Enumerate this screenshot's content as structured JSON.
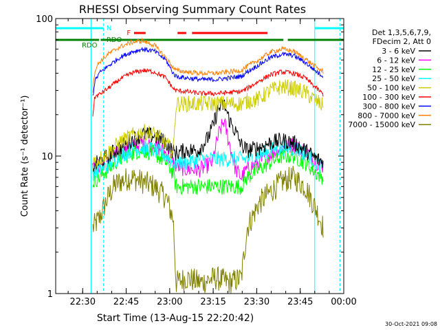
{
  "chart_data": {
    "type": "line",
    "title": "RHESSI Observing Summary Count Rates",
    "xlabel": "Start Time (13-Aug-15 22:20:42)",
    "ylabel": "Count Rate (s⁻¹ detector⁻¹)",
    "yscale": "log",
    "ylim": [
      1,
      100
    ],
    "xlim_minutes_after_22_20_42": [
      0,
      99.3
    ],
    "x_ticks": [
      "22:30",
      "22:45",
      "23:00",
      "23:15",
      "23:30",
      "23:45",
      "00:00"
    ],
    "y_ticks": [
      "1",
      "10",
      "100"
    ],
    "legend_header": [
      "Det 1,3,5,6,7,9,",
      "FDecim 2, Att 0"
    ],
    "legend_position": "top-right",
    "grid": false,
    "series": [
      {
        "name": "3 - 6 keV",
        "color": "#000000",
        "x": [
          12.8,
          15,
          18,
          22,
          26,
          30,
          34,
          38,
          40.5,
          41.5,
          45,
          49,
          52,
          54,
          56,
          58,
          60,
          62,
          64,
          66,
          70,
          74,
          78,
          82,
          86,
          90,
          92.3
        ],
        "y": [
          8.5,
          9,
          10,
          11.5,
          13,
          14.5,
          14,
          12.5,
          10.8,
          10.5,
          11,
          11,
          13,
          16,
          22,
          24,
          18,
          15,
          12,
          11,
          11.5,
          12.5,
          13,
          12.5,
          11,
          9.5,
          9
        ]
      },
      {
        "name": "6 - 12 keV",
        "color": "#ff00ff",
        "x": [
          12.8,
          15,
          18,
          22,
          26,
          30,
          34,
          38,
          40.5,
          41.5,
          45,
          50,
          54,
          56,
          58,
          60,
          62,
          64,
          66,
          70,
          74,
          78,
          82,
          86,
          90,
          92.3
        ],
        "y": [
          8,
          8.5,
          9.5,
          10.5,
          11.5,
          12.5,
          12,
          10.5,
          9,
          8.5,
          8,
          8,
          9,
          14,
          18,
          12,
          8,
          7,
          8,
          9,
          10.5,
          11.5,
          12,
          11,
          9,
          8.5
        ]
      },
      {
        "name": "12 - 25 keV",
        "color": "#00ff00",
        "x": [
          12.8,
          15,
          18,
          22,
          26,
          30,
          34,
          38,
          40.5,
          41.5,
          45,
          50,
          55,
          60,
          64,
          66,
          70,
          74,
          78,
          82,
          86,
          90,
          92.3
        ],
        "y": [
          6.5,
          7,
          8,
          9.5,
          10.5,
          11,
          10.5,
          9,
          7.5,
          6,
          6,
          6,
          6,
          6,
          6,
          7,
          8,
          9,
          10,
          10,
          9,
          7.5,
          7
        ]
      },
      {
        "name": "25 - 50 keV",
        "color": "#00ffff",
        "x": [
          12.8,
          15,
          18,
          22,
          26,
          30,
          34,
          38,
          40.5,
          41.5,
          45,
          50,
          55,
          60,
          64,
          66,
          70,
          74,
          78,
          82,
          86,
          90,
          92.3
        ],
        "y": [
          7.5,
          8,
          8.5,
          10,
          11,
          11.5,
          11,
          10,
          9,
          9,
          9,
          9.5,
          9.5,
          9.5,
          9.5,
          9.5,
          10,
          11,
          11.5,
          11.5,
          10.5,
          9,
          8
        ]
      },
      {
        "name": "50 - 100 keV",
        "color": "#cccc00",
        "x": [
          12.8,
          15,
          18,
          22,
          26,
          30,
          34,
          38,
          40.5,
          41.5,
          45,
          50,
          55,
          60,
          64,
          66,
          70,
          74,
          78,
          82,
          86,
          90,
          92.3
        ],
        "y": [
          9,
          9.5,
          10.5,
          12.5,
          14,
          15,
          14.5,
          12.5,
          10.5,
          24,
          24,
          24,
          24,
          24,
          24,
          25,
          26,
          30,
          32,
          31,
          29,
          25,
          23
        ]
      },
      {
        "name": "100 - 300 keV",
        "color": "#ff0000",
        "x": [
          12.8,
          13.5,
          15,
          18,
          22,
          26,
          30,
          34,
          38,
          40.5,
          41.5,
          45,
          50,
          55,
          60,
          64,
          66,
          70,
          74,
          78,
          82,
          86,
          90,
          92.3
        ],
        "y": [
          20,
          27,
          28,
          31,
          36,
          40,
          42,
          41,
          37,
          31,
          30,
          29.5,
          28.5,
          28.5,
          29,
          29.5,
          31,
          35,
          39,
          41,
          40,
          37,
          31,
          28
        ]
      },
      {
        "name": "300 - 800 keV",
        "color": "#0000ff",
        "x": [
          12.8,
          13.5,
          15,
          18,
          22,
          26,
          30,
          34,
          38,
          40.5,
          41.5,
          45,
          50,
          55,
          60,
          64,
          66,
          70,
          74,
          78,
          82,
          86,
          90,
          92.3
        ],
        "y": [
          27,
          35,
          40,
          45,
          52,
          57,
          60,
          58,
          50,
          40,
          38,
          37,
          36,
          36,
          37,
          38,
          41,
          46,
          52,
          55,
          54,
          48,
          41,
          38
        ]
      },
      {
        "name": "800 - 7000 keV",
        "color": "#ff8000",
        "x": [
          12.8,
          13.5,
          15,
          18,
          22,
          26,
          30,
          34,
          38,
          40.5,
          41.5,
          45,
          50,
          55,
          60,
          64,
          66,
          70,
          74,
          78,
          82,
          86,
          90,
          92.3
        ],
        "y": [
          30,
          42,
          48,
          55,
          62,
          67,
          69,
          64,
          52,
          44,
          42,
          41,
          40,
          40,
          41,
          42,
          45,
          50,
          57,
          60,
          58,
          51,
          44,
          41
        ]
      },
      {
        "name": "7000 - 15000 keV",
        "color": "#808000",
        "x": [
          12.8,
          15,
          18,
          20,
          22,
          26,
          30,
          34,
          38,
          40.5,
          41.5,
          45,
          50,
          55,
          60,
          64,
          66,
          70,
          74,
          78,
          82,
          86,
          90,
          92.3
        ],
        "y": [
          3,
          3.5,
          5,
          6,
          6.5,
          7,
          6.5,
          6,
          5,
          3.5,
          1.2,
          1.3,
          1.2,
          1.3,
          1.2,
          1.3,
          3,
          4.5,
          5.5,
          6.5,
          7,
          6,
          4,
          3
        ]
      }
    ],
    "flags": {
      "night_label": "N",
      "flare_label": "F",
      "rdo_label": "RDO",
      "night_color": "#00ffff",
      "flare_color": "#ff0000",
      "rdo_color": "#008000",
      "night_intervals": [
        [
          0,
          16.5
        ],
        [
          89.3,
          99.3
        ]
      ],
      "flare_intervals": [
        [
          27,
          31
        ],
        [
          42,
          45
        ],
        [
          47,
          73
        ]
      ],
      "rdo_intervals": [
        [
          0,
          15
        ],
        [
          15.5,
          78.5
        ],
        [
          80,
          99.3
        ]
      ],
      "boundaries": [
        12.2,
        16.5,
        89.3,
        98
      ]
    }
  },
  "footer": {
    "timestamp": "30-Oct-2021 09:08"
  }
}
